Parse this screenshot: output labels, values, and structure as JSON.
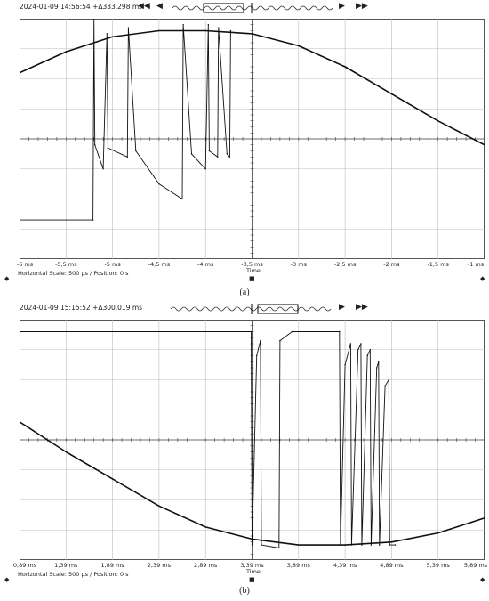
{
  "panels": [
    {
      "timestamp": "2024-01-09 14:56:54 +Δ333.298 ms",
      "x_tick_labels": [
        "-6 ms",
        "-5,5 ms",
        "-5 ms",
        "-4,5 ms",
        "-4 ms",
        "-3,5 ms",
        "-3 ms",
        "-2,5 ms",
        "-2 ms",
        "-1,5 ms",
        "-1 ms"
      ],
      "x_axis_title": "Time",
      "footer": "Horizontal Scale: 500 µs /  Position: 0 s",
      "caption": "(a)"
    },
    {
      "timestamp": "2024-01-09 15:15:52 +Δ300.019 ms",
      "x_tick_labels": [
        "0,89 ms",
        "1,39 ms",
        "1,89 ms",
        "2,39 ms",
        "2,89 ms",
        "3,39 ms",
        "3,89 ms",
        "4,39 ms",
        "4,89 ms",
        "5,39 ms",
        "5,89 ms"
      ],
      "x_axis_title": "Time",
      "footer": "Horizontal Scale: 500 µs /  Position: 0 s",
      "caption": "(b)"
    }
  ],
  "icons": {
    "rewind": "◀◀",
    "back": "◀",
    "forward": "▶",
    "fastforward": "▶▶"
  },
  "chart_data": [
    {
      "type": "line",
      "xlim": [
        -6,
        -1
      ],
      "ylim": [
        -4,
        4
      ],
      "grid": true,
      "series": [
        {
          "x": [
            -6.0,
            -5.5,
            -5.0,
            -4.5,
            -4.0,
            -3.5,
            -3.0,
            -2.5,
            -2.0,
            -1.5,
            -1.0
          ],
          "y": [
            2.2,
            2.9,
            3.4,
            3.6,
            3.6,
            3.5,
            3.1,
            2.4,
            1.5,
            0.6,
            -0.2
          ]
        },
        {
          "x": [
            -6.0,
            -5.21,
            -5.2,
            -5.19,
            -5.1,
            -5.06,
            -5.05,
            -4.84,
            -4.83,
            -4.75,
            -4.5,
            -4.25,
            -4.24,
            -4.15,
            -4.0,
            -3.97,
            -3.96,
            -3.87,
            -3.86,
            -3.77,
            -3.74,
            -3.73
          ],
          "y": [
            -2.7,
            -2.7,
            4.0,
            -0.2,
            -1.0,
            3.5,
            -0.3,
            -0.6,
            3.7,
            -0.4,
            -1.5,
            -2.0,
            3.8,
            -0.5,
            -1.0,
            3.8,
            -0.4,
            -0.6,
            3.7,
            -0.5,
            -0.6,
            3.6
          ]
        }
      ]
    },
    {
      "type": "line",
      "xlim": [
        0.89,
        5.89
      ],
      "ylim": [
        -4,
        4
      ],
      "grid": true,
      "series": [
        {
          "x": [
            0.89,
            1.39,
            1.89,
            2.39,
            2.89,
            3.39,
            3.89,
            4.39,
            4.89,
            5.39,
            5.89
          ],
          "y": [
            0.6,
            -0.4,
            -1.3,
            -2.2,
            -2.9,
            -3.3,
            -3.5,
            -3.5,
            -3.4,
            -3.1,
            -2.6
          ]
        },
        {
          "x": [
            0.89,
            3.38,
            3.39,
            3.44,
            3.48,
            3.49,
            3.68,
            3.69,
            3.82,
            4.33,
            4.34,
            4.39,
            4.45,
            4.46,
            4.53,
            4.56,
            4.57,
            4.63,
            4.66,
            4.67,
            4.73,
            4.75,
            4.76,
            4.82,
            4.86,
            4.87,
            4.93
          ],
          "y": [
            3.6,
            3.6,
            -3.5,
            2.8,
            3.3,
            -3.5,
            -3.6,
            3.3,
            3.6,
            3.6,
            -3.5,
            2.5,
            3.2,
            -3.5,
            3.0,
            3.2,
            -3.5,
            2.8,
            3.0,
            -3.5,
            2.4,
            2.6,
            -3.5,
            1.8,
            2.0,
            -3.5,
            -3.5
          ]
        }
      ]
    }
  ]
}
